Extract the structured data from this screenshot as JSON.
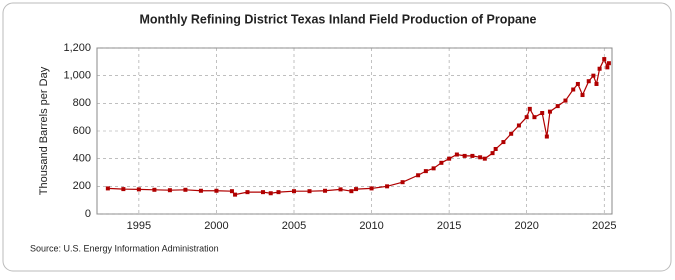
{
  "chart_data": {
    "type": "line",
    "title": "Monthly Refining District Texas Inland Field Production of Propane",
    "y_label": "Thousand Barrels per Day",
    "source": "Source: U.S. Energy Information Administration",
    "x": [
      1993,
      1994,
      1995,
      1996,
      1997,
      1998,
      1999,
      2000,
      2001,
      2001.2,
      2002,
      2003,
      2003.5,
      2004,
      2005,
      2006,
      2007,
      2008,
      2008.7,
      2009,
      2010,
      2011,
      2012,
      2013,
      2013.5,
      2014,
      2014.5,
      2015,
      2015.5,
      2016,
      2016.5,
      2017,
      2017.3,
      2017.8,
      2018,
      2018.5,
      2019,
      2019.5,
      2020,
      2020.2,
      2020.5,
      2021,
      2021.3,
      2021.5,
      2022,
      2022.5,
      2023,
      2023.3,
      2023.6,
      2024,
      2024.3,
      2024.5,
      2024.7,
      2025,
      2025.2,
      2025.3
    ],
    "series": [
      {
        "name": "Texas Inland Field Production of Propane",
        "color": "#b00000",
        "values": [
          185,
          180,
          178,
          175,
          172,
          175,
          168,
          168,
          165,
          140,
          158,
          158,
          150,
          158,
          165,
          165,
          168,
          178,
          165,
          180,
          185,
          200,
          230,
          280,
          310,
          330,
          370,
          400,
          430,
          420,
          420,
          410,
          400,
          440,
          470,
          520,
          580,
          640,
          700,
          760,
          700,
          730,
          560,
          740,
          780,
          820,
          900,
          940,
          860,
          960,
          1000,
          940,
          1050,
          1120,
          1060,
          1090
        ]
      }
    ],
    "xlim": [
      1992.3,
      2025.5
    ],
    "xticks": [
      1995,
      2000,
      2005,
      2010,
      2015,
      2020,
      2025
    ],
    "ylim": [
      0,
      1200
    ],
    "yticks": [
      0,
      200,
      400,
      600,
      800,
      {
        "value": 1000,
        "label": "1,000"
      },
      {
        "value": 1200,
        "label": "1,200"
      }
    ],
    "grid": true
  }
}
